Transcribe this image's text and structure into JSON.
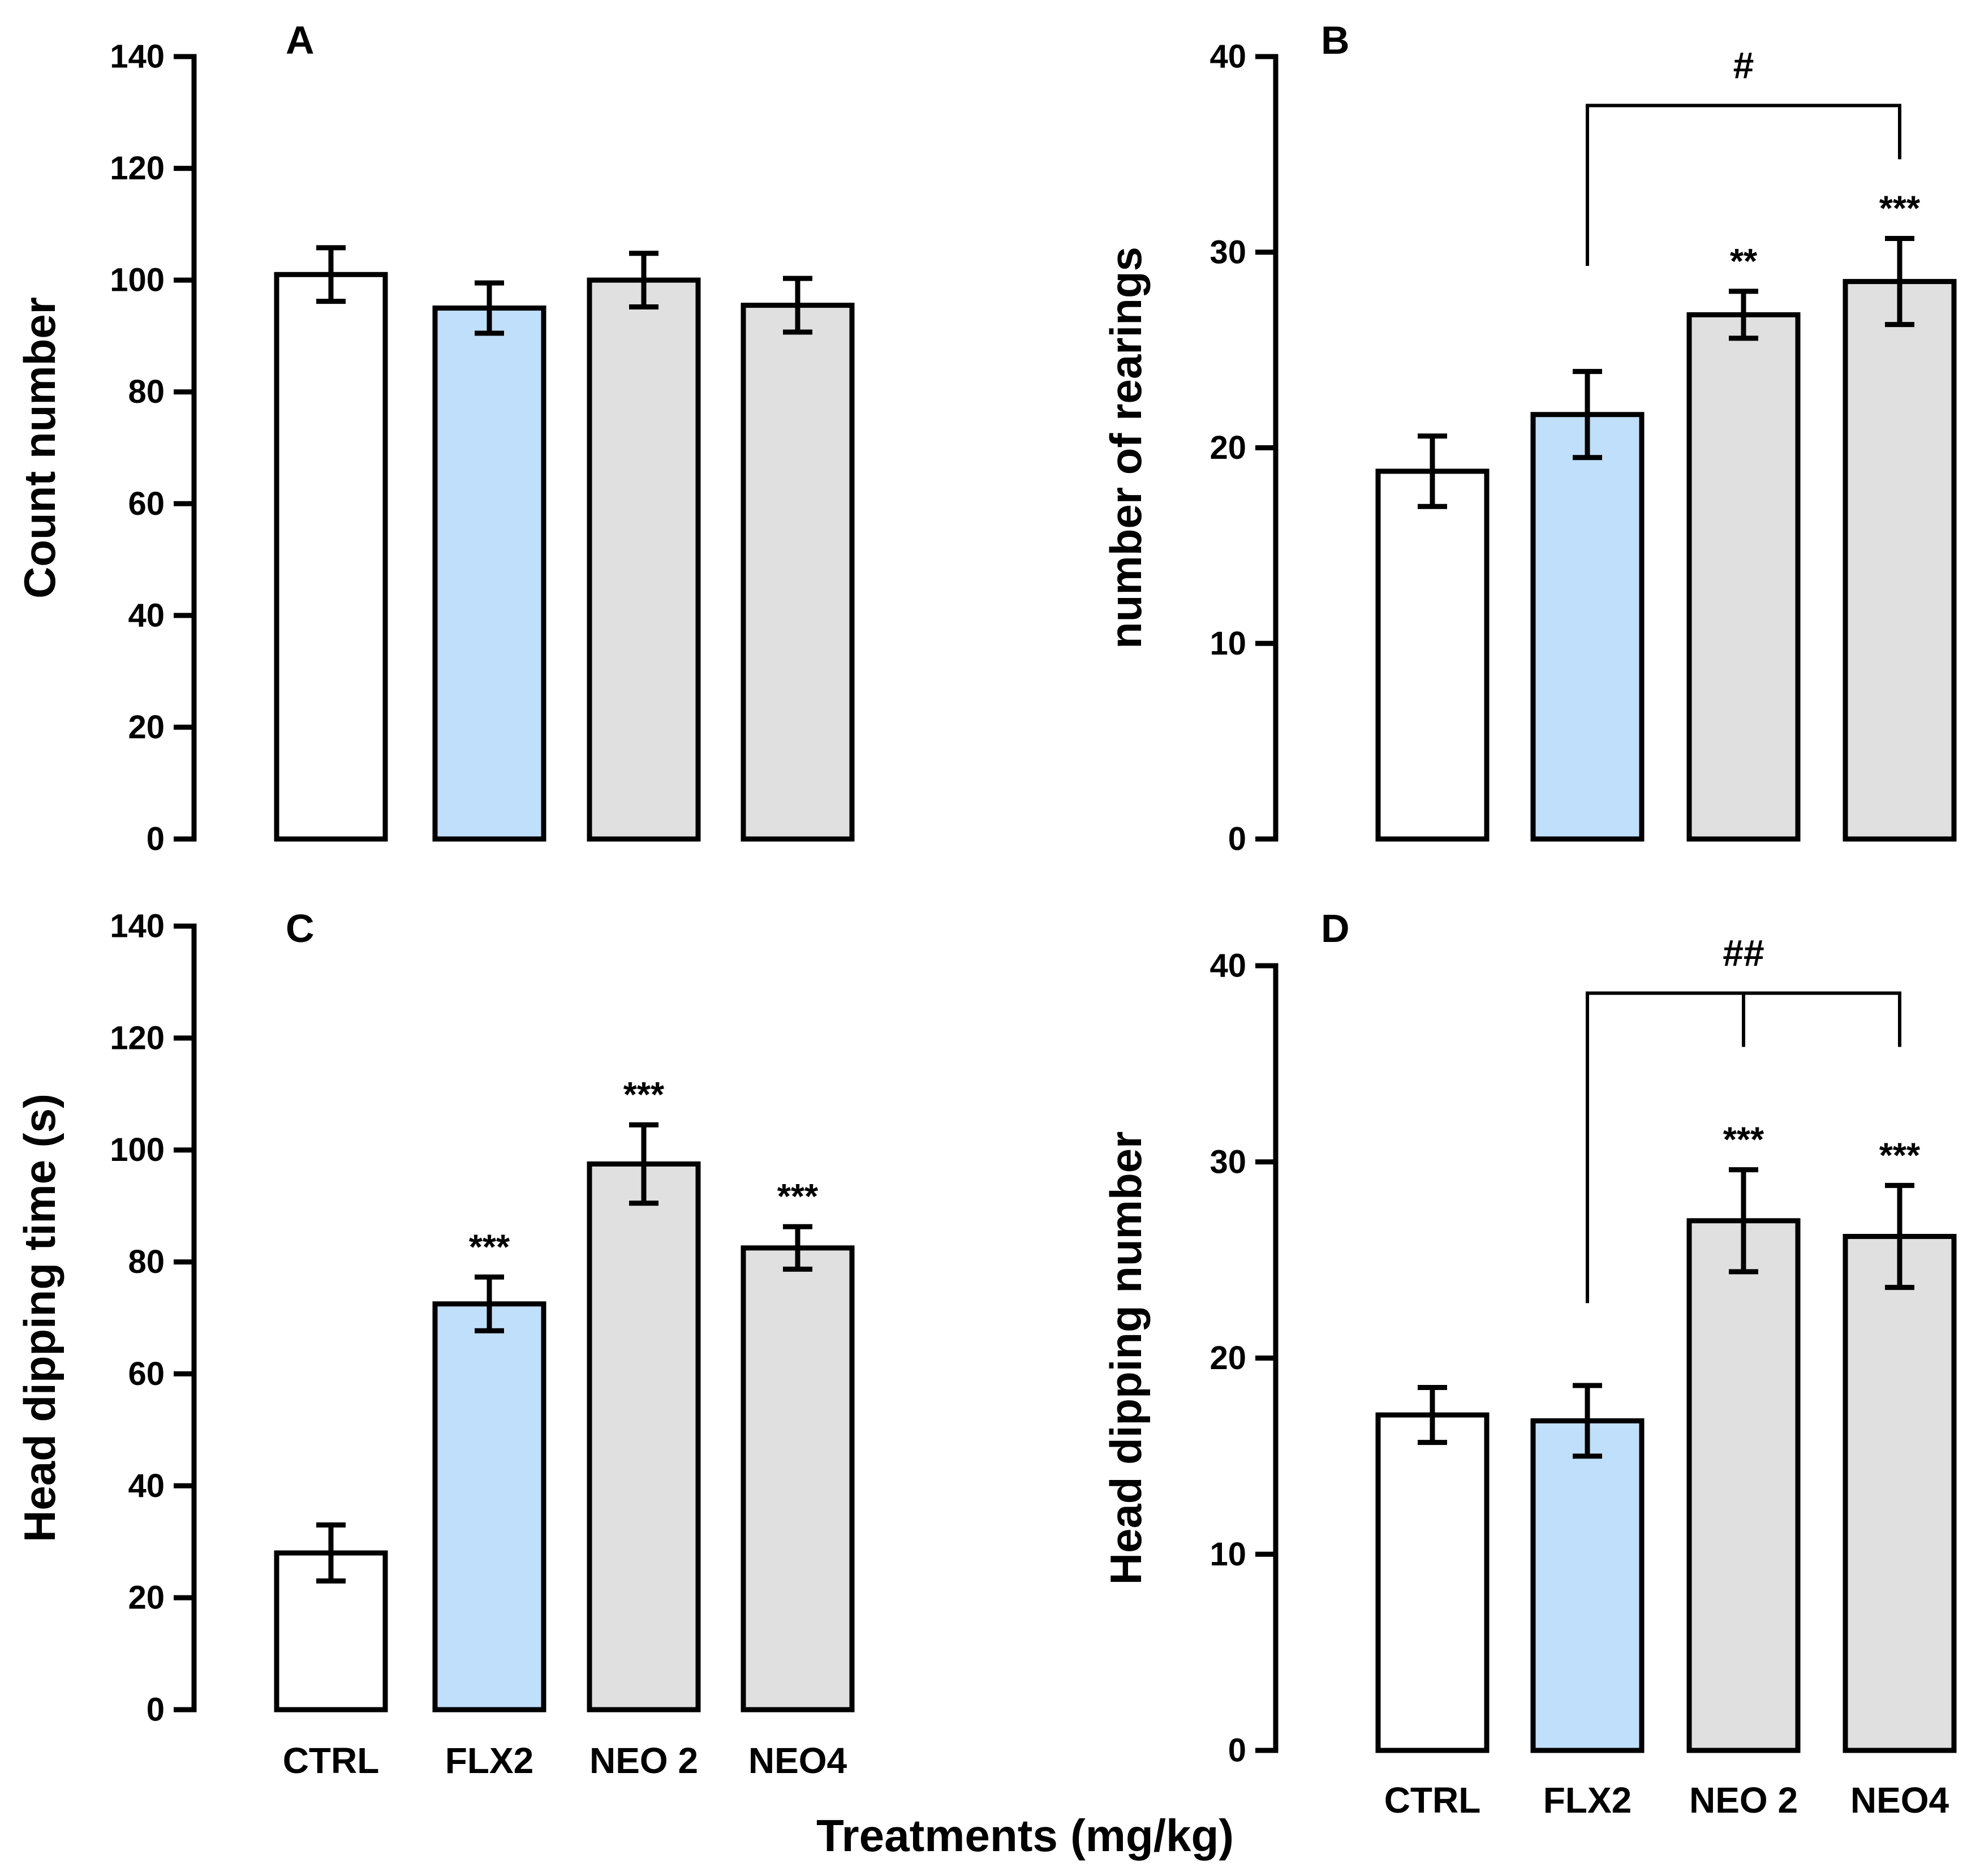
{
  "x_axis_title": "Treatments (mg/kg)",
  "colors": {
    "CTRL": "#ffffff",
    "FLX2": "#c0dffb",
    "NEO 2": "#e0e0e0",
    "NEO4": "#e0e0e0",
    "stroke": "#000000"
  },
  "chart_data": [
    {
      "panel": "A",
      "type": "bar",
      "title": "",
      "ylabel": "Count number",
      "xlabel": "",
      "ylim": [
        0,
        140
      ],
      "yticks": [
        0,
        20,
        40,
        60,
        80,
        100,
        120,
        140
      ],
      "categories": [
        "CTRL",
        "FLX2",
        "NEO 2",
        "NEO4"
      ],
      "show_category_labels": false,
      "values": [
        101,
        95,
        100,
        95.5
      ],
      "errors": [
        4.8,
        4.5,
        4.8,
        4.8
      ],
      "annotations": [
        "",
        "",
        "",
        ""
      ],
      "brackets": []
    },
    {
      "panel": "B",
      "type": "bar",
      "title": "",
      "ylabel": "number of rearings",
      "xlabel": "",
      "ylim": [
        0,
        40
      ],
      "yticks": [
        0,
        10,
        20,
        30,
        40
      ],
      "categories": [
        "CTRL",
        "FLX2",
        "NEO 2",
        "NEO4"
      ],
      "show_category_labels": false,
      "values": [
        18.8,
        21.7,
        26.8,
        28.5
      ],
      "errors": [
        1.8,
        2.2,
        1.2,
        2.2
      ],
      "annotations": [
        "",
        "",
        "**",
        "***"
      ],
      "brackets": [
        {
          "label": "#",
          "from": 1,
          "to": [
            3
          ],
          "y": 37.5,
          "drop_to": 29.3
        }
      ]
    },
    {
      "panel": "C",
      "type": "bar",
      "title": "",
      "ylabel": "Head dipping time (s)",
      "xlabel": "",
      "ylim": [
        0,
        140
      ],
      "yticks": [
        0,
        20,
        40,
        60,
        80,
        100,
        120,
        140
      ],
      "categories": [
        "CTRL",
        "FLX2",
        "NEO 2",
        "NEO4"
      ],
      "show_category_labels": true,
      "values": [
        28,
        72.5,
        97.5,
        82.5
      ],
      "errors": [
        5,
        4.8,
        7,
        3.8
      ],
      "annotations": [
        "",
        "***",
        "***",
        "***"
      ],
      "brackets": []
    },
    {
      "panel": "D",
      "type": "bar",
      "title": "",
      "ylabel": "Head dipping number",
      "xlabel": "",
      "ylim": [
        0,
        40
      ],
      "yticks": [
        0,
        10,
        20,
        30,
        40
      ],
      "categories": [
        "CTRL",
        "FLX2",
        "NEO 2",
        "NEO4"
      ],
      "show_category_labels": true,
      "values": [
        17.1,
        16.8,
        27,
        26.2
      ],
      "errors": [
        1.4,
        1.8,
        2.6,
        2.6
      ],
      "annotations": [
        "",
        "",
        "***",
        "***"
      ],
      "brackets": [
        {
          "label": "##",
          "from": 1,
          "to": [
            2,
            3
          ],
          "y": 38.6,
          "drop_to": 22.8
        }
      ]
    }
  ]
}
